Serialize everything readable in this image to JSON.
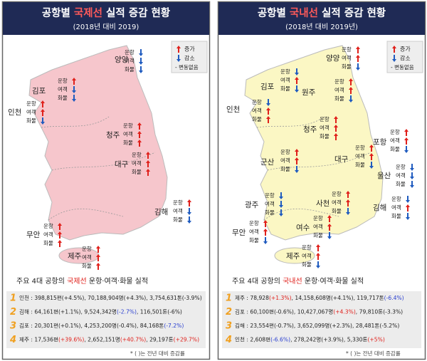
{
  "panels": [
    {
      "title": {
        "before": "공항별",
        "highlight": "국제선",
        "after": "실적 증감 현황"
      },
      "subtitle": "(2018년 대비 2019)",
      "map_fill": "#f6c6cc",
      "legend": {
        "up": "증가",
        "down": "감소",
        "none": "- 변동없음"
      },
      "metrics": [
        "운항",
        "여객",
        "화물"
      ],
      "airports": [
        {
          "name": "양양",
          "trends": [
            "down",
            "down",
            "down"
          ]
        },
        {
          "name": "김포",
          "trends": [
            "up",
            "down",
            "down"
          ]
        },
        {
          "name": "인천",
          "trends": [
            "up",
            "up",
            "down"
          ]
        },
        {
          "name": "청주",
          "trends": [
            "up",
            "up",
            "up"
          ]
        },
        {
          "name": "대구",
          "trends": [
            "up",
            "up",
            "up"
          ]
        },
        {
          "name": "김해",
          "trends": [
            "up",
            "down",
            "down"
          ]
        },
        {
          "name": "무안",
          "trends": [
            "up",
            "up",
            "up"
          ]
        },
        {
          "name": "제주",
          "trends": [
            "up",
            "up",
            "up"
          ]
        }
      ],
      "table": {
        "heading": {
          "before": "주요 4대 공항의",
          "highlight": "국제선",
          "after": "운항·여객·화물 실적"
        },
        "rows": [
          {
            "rank": "1",
            "airport": "인천 :",
            "cells": [
              {
                "amount": "398,815편",
                "change": "(+4.5%)"
              },
              {
                "amount": ", 70,188,904명",
                "change": "(+4.3%)"
              },
              {
                "amount": ", 3,754,631톤",
                "change": "(-3.9%)"
              }
            ]
          },
          {
            "rank": "2",
            "airport": "김해 :",
            "cells": [
              {
                "amount": "64,161편",
                "change": "(+1.1%)"
              },
              {
                "amount": ", 9,524,342명",
                "change": "(-2.7%)",
                "color": "#2a3fd0"
              },
              {
                "amount": ", 116,501톤",
                "change": "(-6%)"
              }
            ]
          },
          {
            "rank": "3",
            "airport": "김포 :",
            "cells": [
              {
                "amount": "20,301편",
                "change": "(+0.1%)"
              },
              {
                "amount": ", 4,253,200명",
                "change": "(-0.4%)"
              },
              {
                "amount": ", 84,168톤",
                "change": "(-7.2%)",
                "color": "#2a3fd0"
              }
            ]
          },
          {
            "rank": "4",
            "airport": "제주 :",
            "cells": [
              {
                "amount": "17,536편",
                "change": "(+39.6%)",
                "color": "#e0201b"
              },
              {
                "amount": ", 2,652,151명",
                "change": "(+40.7%)",
                "color": "#e0201b"
              },
              {
                "amount": ", 29,197톤",
                "change": "(+29.7%)",
                "color": "#e0201b"
              }
            ]
          }
        ]
      },
      "footnote": "* ( )는 전년 대비 증감률"
    },
    {
      "title": {
        "before": "공항별",
        "highlight": "국내선",
        "after": "실적 증감 현황"
      },
      "subtitle": "(2018년 대비 2019년)",
      "map_fill": "#fbf7c4",
      "legend": {
        "up": "증가",
        "down": "감소",
        "none": "- 변동없음"
      },
      "metrics": [
        "운항",
        "여객",
        "화물"
      ],
      "airports": [
        {
          "name": "양양",
          "trends": [
            "up",
            "up",
            "down"
          ]
        },
        {
          "name": "김포",
          "trends": [
            "down",
            "up",
            "down"
          ]
        },
        {
          "name": "원주",
          "trends": [
            "up",
            "up",
            "down"
          ]
        },
        {
          "name": "인천",
          "trends": [
            "down",
            "up",
            "up"
          ]
        },
        {
          "name": "청주",
          "trends": [
            "up",
            "up",
            "up"
          ]
        },
        {
          "name": "포항",
          "trends": [
            "up",
            "up",
            "down"
          ]
        },
        {
          "name": "군산",
          "trends": [
            "up",
            "up",
            "down"
          ]
        },
        {
          "name": "대구",
          "trends": [
            "up",
            "up",
            "down"
          ]
        },
        {
          "name": "울산",
          "trends": [
            "down",
            "down",
            "down"
          ]
        },
        {
          "name": "광주",
          "trends": [
            "down",
            "down",
            "down"
          ]
        },
        {
          "name": "사천",
          "trends": [
            "up",
            "up",
            "down"
          ]
        },
        {
          "name": "김해",
          "trends": [
            "down",
            "up",
            "down"
          ]
        },
        {
          "name": "무안",
          "trends": [
            "up",
            "up",
            "down"
          ]
        },
        {
          "name": "여수",
          "trends": [
            "up",
            "up",
            "down"
          ]
        },
        {
          "name": "제주",
          "trends": [
            "up",
            "up",
            "down"
          ]
        }
      ],
      "table": {
        "heading": {
          "before": "주요 4대 공항의",
          "highlight": "국내선",
          "after": "운항·여객·화물 실적"
        },
        "rows": [
          {
            "rank": "1",
            "airport": "제주 :",
            "cells": [
              {
                "amount": "78,928",
                "change": "(+1.3%)",
                "color": "#e0201b"
              },
              {
                "amount": ", 14,158,608명",
                "change": "(+4.1%)"
              },
              {
                "amount": ", 119,717톤",
                "change": "(-6.4%)",
                "color": "#2a3fd0"
              }
            ]
          },
          {
            "rank": "2",
            "airport": "김포 :",
            "cells": [
              {
                "amount": "60,100편",
                "change": "(-0.6%)"
              },
              {
                "amount": ", 10,427,067명",
                "change": "(+4.3%)",
                "color": "#e0201b"
              },
              {
                "amount": ", 79,810톤",
                "change": "(-3.3%)"
              }
            ]
          },
          {
            "rank": "3",
            "airport": "김해 :",
            "cells": [
              {
                "amount": "23,554편",
                "change": "(-0.7%)"
              },
              {
                "amount": ", 3,652,099명",
                "change": "(+2.3%)"
              },
              {
                "amount": ", 28,481톤",
                "change": "(-5.2%)"
              }
            ]
          },
          {
            "rank": "4",
            "airport": "인천 :",
            "cells": [
              {
                "amount": "2,608편",
                "change": "(-6.6%)",
                "color": "#2a3fd0"
              },
              {
                "amount": ", 278,242명",
                "change": "(+3.9%)"
              },
              {
                "amount": ", 5,330톤",
                "change": "(+5%)",
                "color": "#e0201b"
              }
            ]
          }
        ]
      },
      "footnote": "* ( )는 전년 대비 증감률"
    }
  ]
}
